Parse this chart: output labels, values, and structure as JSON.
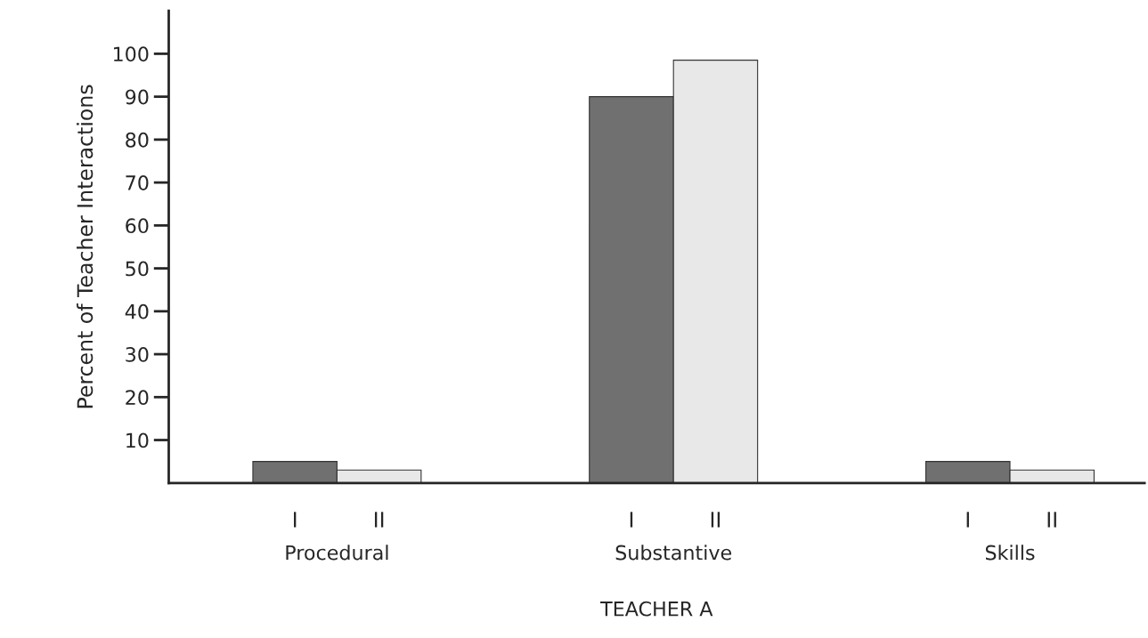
{
  "chart_data": {
    "type": "bar",
    "xlabel": "TEACHER A",
    "ylabel": "Percent of Teacher Interactions",
    "categories": [
      "Procedural",
      "Substantive",
      "Skills"
    ],
    "series": [
      {
        "name": "I",
        "color": "#707070",
        "values": [
          5,
          90,
          5
        ]
      },
      {
        "name": "II",
        "color": "#e8e8e8",
        "values": [
          3,
          98.5,
          3
        ]
      }
    ],
    "ylim": [
      0,
      110
    ],
    "yticks": [
      10,
      20,
      30,
      40,
      50,
      60,
      70,
      80,
      90,
      100
    ],
    "grid": false,
    "legend": false
  }
}
